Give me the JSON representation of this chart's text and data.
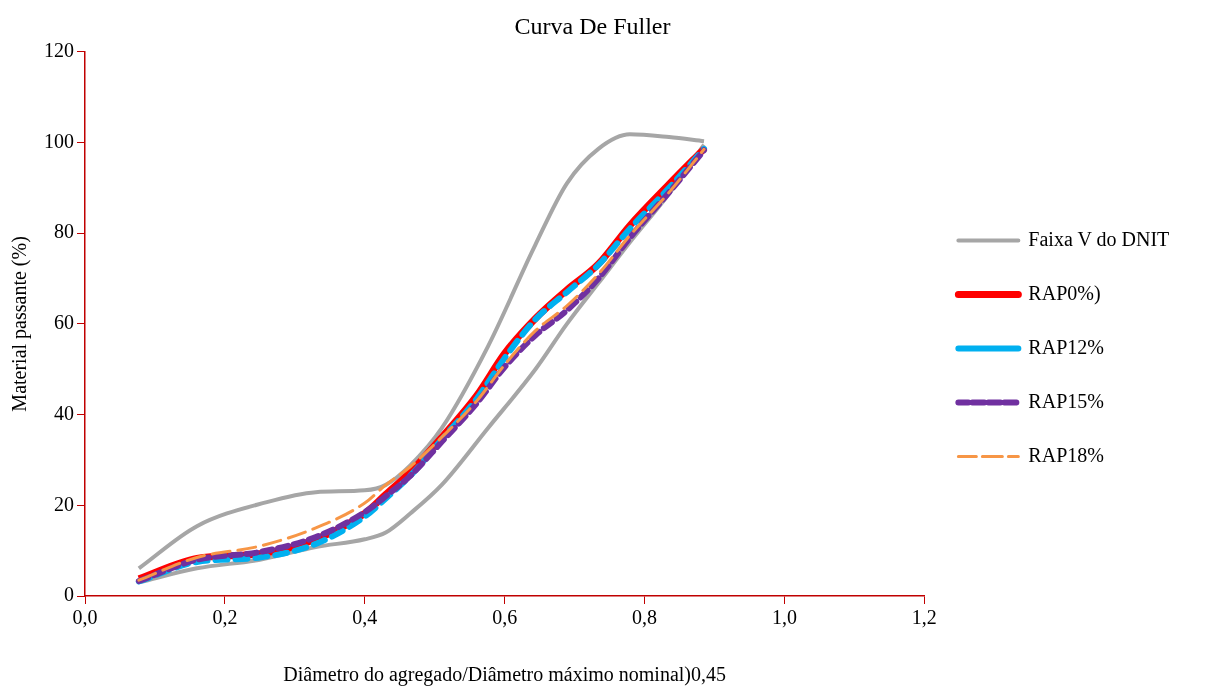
{
  "chart_data": {
    "type": "line",
    "title": "Curva De Fuller",
    "xlabel": "Diâmetro do agregado/Diâmetro máximo nominal)0,45",
    "ylabel": "Material passante (%)",
    "xlim": [
      0,
      1.2
    ],
    "xticks": [
      {
        "value": 0,
        "label": "0,0"
      },
      {
        "value": 0.2,
        "label": "0,2"
      },
      {
        "value": 0.4,
        "label": "0,4"
      },
      {
        "value": 0.6,
        "label": "0,6"
      },
      {
        "value": 0.8,
        "label": "0,8"
      },
      {
        "value": 1,
        "label": "1,0"
      },
      {
        "value": 1.2,
        "label": "1,2"
      }
    ],
    "ylim": [
      0,
      120
    ],
    "yticks": [
      0,
      20,
      40,
      60,
      80,
      100,
      120
    ],
    "grid": false,
    "legend": "right",
    "marker": "none",
    "x": [
      0.077,
      0.16,
      0.25,
      0.33,
      0.4,
      0.43,
      0.465,
      0.51,
      0.56,
      0.6,
      0.644,
      0.689,
      0.734,
      0.779,
      0.835,
      0.885
    ],
    "series": [
      {
        "name": "Faixa V do DNIT",
        "color": "#a6a6a6",
        "line_style": "solid",
        "x": [
          0.077,
          0.16,
          0.26,
          0.33,
          0.4,
          0.43,
          0.465,
          0.51,
          0.576,
          0.644,
          0.689,
          0.734,
          0.779,
          0.835,
          0.885
        ],
        "values": [
          6.1,
          15.4,
          20.7,
          22.9,
          23.3,
          24.5,
          28.8,
          37,
          55,
          77.5,
          91,
          98.6,
          101.8,
          101.2,
          100.3
        ]
      },
      {
        "color": "#a6a6a6",
        "line_style": "solid",
        "x": [
          0.077,
          0.16,
          0.25,
          0.33,
          0.4,
          0.43,
          0.465,
          0.51,
          0.576,
          0.644,
          0.689,
          0.734,
          0.779,
          0.835,
          0.885
        ],
        "values": [
          3.0,
          6.1,
          8.0,
          10.8,
          12.5,
          14.0,
          18.2,
          24.5,
          37,
          50,
          60,
          69,
          78,
          88.7,
          99.5
        ]
      },
      {
        "name": "RAP0%)",
        "color": "#ff0000",
        "line_style": "solid",
        "values": [
          3.8,
          8.3,
          9.3,
          12.5,
          18.2,
          22.4,
          27.3,
          35,
          44.2,
          53.5,
          61.2,
          67.5,
          73.2,
          81.7,
          90.8,
          98.6
        ]
      },
      {
        "name": "RAP12%",
        "color": "#00b0f0",
        "line_style": "dashed",
        "values": [
          3.2,
          7.5,
          8.5,
          11.5,
          17.5,
          21.5,
          26.5,
          34.5,
          43.5,
          52.5,
          61,
          67,
          73,
          81,
          90,
          98.6
        ]
      },
      {
        "name": "RAP15%",
        "color": "#7030a0",
        "line_style": "dashed",
        "values": [
          3.3,
          8,
          9.7,
          13,
          18.5,
          22,
          26.5,
          34,
          42.5,
          50.5,
          57.5,
          63,
          70,
          79,
          89,
          98.3
        ]
      },
      {
        "name": "RAP18%",
        "color": "#f79646",
        "line_style": "dashed",
        "values": [
          3.5,
          8.5,
          11,
          15,
          20.5,
          24.5,
          28.5,
          35,
          43,
          51,
          58.5,
          64,
          71,
          79.5,
          89,
          98.5
        ]
      }
    ]
  }
}
